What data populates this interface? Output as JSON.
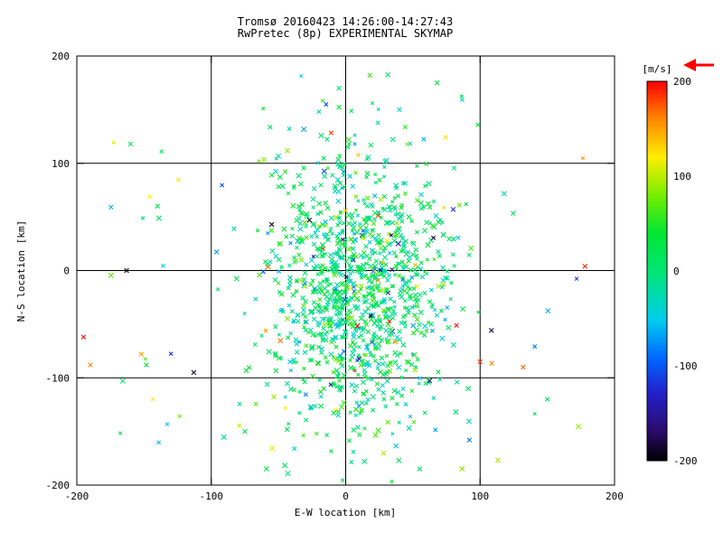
{
  "title": {
    "line1": "Tromsø 20160423 14:26:00-14:27:43",
    "line2": "RwPretec (8p) EXPERIMENTAL SKYMAP"
  },
  "chart_data": {
    "type": "scatter",
    "title": "Tromsø 20160423 14:26:00-14:27:43 — RwPretec (8p) EXPERIMENTAL SKYMAP",
    "xlabel": "E-W location [km]",
    "ylabel": "N-S location [km]",
    "xlim": [
      -200,
      200
    ],
    "ylim": [
      -200,
      200
    ],
    "xticks": [
      -200,
      -100,
      0,
      100,
      200
    ],
    "yticks": [
      -200,
      -100,
      0,
      100,
      200
    ],
    "grid_values": [
      -100,
      0,
      100
    ],
    "grid": true,
    "marker": "x",
    "colorbar": {
      "label": "[m/s]",
      "min": -200,
      "max": 200,
      "ticks": [
        200,
        100,
        0,
        -100,
        -200
      ],
      "stops": [
        {
          "t": 0.0,
          "color": "#000000"
        },
        {
          "t": 0.08,
          "color": "#2b0a6e"
        },
        {
          "t": 0.18,
          "color": "#2222cc"
        },
        {
          "t": 0.27,
          "color": "#0066ff"
        },
        {
          "t": 0.37,
          "color": "#00ccee"
        },
        {
          "t": 0.5,
          "color": "#00e673"
        },
        {
          "t": 0.6,
          "color": "#00e632"
        },
        {
          "t": 0.7,
          "color": "#77ee00"
        },
        {
          "t": 0.8,
          "color": "#ffee00"
        },
        {
          "t": 0.9,
          "color": "#ff8800"
        },
        {
          "t": 1.0,
          "color": "#ff0000"
        }
      ]
    },
    "cluster": {
      "seed": 20160423,
      "count": 1150,
      "center": [
        8,
        -18
      ],
      "sigma": [
        33,
        62
      ],
      "velocity_mean": 8,
      "velocity_sigma": 38,
      "hot_fraction": 0.03
    },
    "background_scatter": {
      "count": 70,
      "x_range": [
        -175,
        178
      ],
      "y_range": [
        -190,
        190
      ],
      "velocity_sigma": 70
    },
    "outlier_points": [
      {
        "x": -163,
        "y": 0,
        "v": -195
      },
      {
        "x": -113,
        "y": -95,
        "v": -185
      },
      {
        "x": -195,
        "y": -62,
        "v": 195
      },
      {
        "x": -190,
        "y": -88,
        "v": 160
      },
      {
        "x": -152,
        "y": -78,
        "v": 150
      },
      {
        "x": 100,
        "y": -85,
        "v": 185
      },
      {
        "x": 132,
        "y": -90,
        "v": 170
      },
      {
        "x": 178,
        "y": 4,
        "v": 190
      },
      {
        "x": -55,
        "y": 43,
        "v": -195
      },
      {
        "x": -27,
        "y": 47,
        "v": -185
      },
      {
        "x": 80,
        "y": 57,
        "v": -120
      },
      {
        "x": 92,
        "y": -158,
        "v": -85
      },
      {
        "x": -75,
        "y": -150,
        "v": 30
      },
      {
        "x": 55,
        "y": -185,
        "v": 10
      },
      {
        "x": 68,
        "y": 175,
        "v": 30
      },
      {
        "x": 18,
        "y": 182,
        "v": 60
      },
      {
        "x": -5,
        "y": 170,
        "v": 5
      },
      {
        "x": 40,
        "y": 150,
        "v": -40
      },
      {
        "x": -140,
        "y": 60,
        "v": 20
      },
      {
        "x": -160,
        "y": 118,
        "v": 15
      },
      {
        "x": 150,
        "y": -120,
        "v": 20
      }
    ]
  },
  "annotations": {
    "arrow_color": "#ff0000"
  }
}
